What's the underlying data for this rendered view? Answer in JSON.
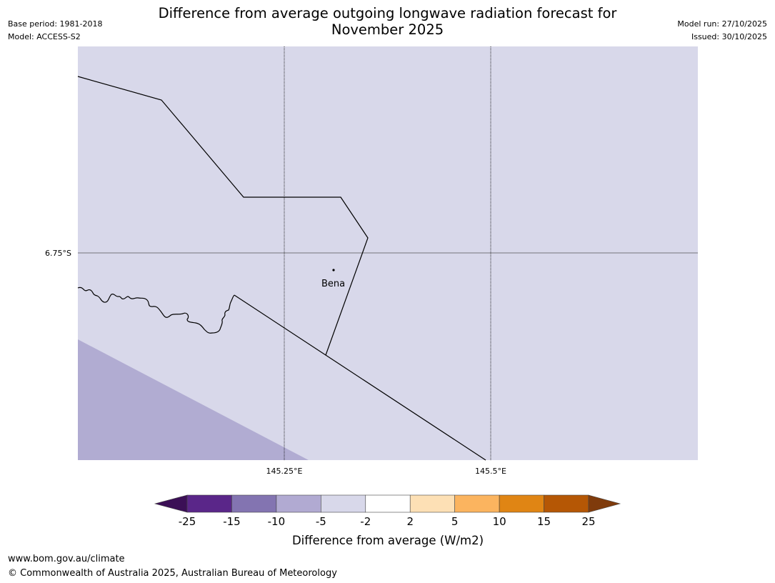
{
  "header": {
    "title_line1": "Difference from average outgoing longwave radiation forecast for",
    "title_line2": "November 2025",
    "base_period": "Base period: 1981-2018",
    "model": "Model: ACCESS-S2",
    "model_run": "Model run: 27/10/2025",
    "issued": "Issued: 30/10/2025"
  },
  "map": {
    "lat_label": "6.75°S",
    "lon_labels": [
      "145.25°E",
      "145.5°E"
    ],
    "place": "Bena",
    "colors": {
      "background": "#d8d8ea",
      "anomaly_region": "#b1acd2",
      "gridline": "#555555",
      "boundary": "#000000"
    }
  },
  "colorbar": {
    "label": "Difference from average (W/m2)",
    "ticks": [
      "-25",
      "-15",
      "-10",
      "-5",
      "-2",
      "2",
      "5",
      "10",
      "15",
      "25"
    ],
    "colors": [
      "#5a2689",
      "#8374b1",
      "#b1aad2",
      "#d8d8ea",
      "#ffffff",
      "#fde0b5",
      "#fbb45f",
      "#e08514",
      "#b55705"
    ],
    "extend_low_color": "#3b0f56",
    "extend_high_color": "#7f3b0c"
  },
  "footer": {
    "url": "www.bom.gov.au/climate",
    "copyright": "© Commonwealth of Australia 2025, Australian Bureau of Meteorology"
  }
}
